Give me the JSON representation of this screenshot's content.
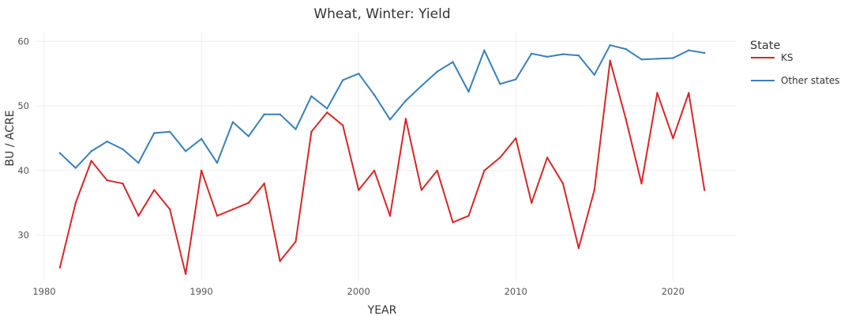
{
  "chart_data": {
    "type": "line",
    "title": "Wheat, Winter: Yield",
    "xlabel": "YEAR",
    "ylabel": "BU / ACRE",
    "xlim": [
      1979.5,
      2024.0
    ],
    "ylim": [
      23.0,
      61.5
    ],
    "x_ticks": [
      1980,
      1990,
      2000,
      2010,
      2020
    ],
    "y_ticks": [
      30,
      40,
      50,
      60
    ],
    "grid": true,
    "legend": {
      "title": "State",
      "position": "right"
    },
    "x": [
      1981,
      1982,
      1983,
      1984,
      1985,
      1986,
      1987,
      1988,
      1989,
      1990,
      1991,
      1992,
      1993,
      1994,
      1995,
      1996,
      1997,
      1998,
      1999,
      2000,
      2001,
      2002,
      2003,
      2004,
      2005,
      2006,
      2007,
      2008,
      2009,
      2010,
      2011,
      2012,
      2013,
      2014,
      2015,
      2016,
      2017,
      2018,
      2019,
      2020,
      2021,
      2022
    ],
    "series": [
      {
        "name": "KS",
        "color": "#d62728",
        "values": [
          25,
          35,
          41.5,
          38.5,
          38,
          33,
          37,
          34,
          24,
          40,
          33,
          34,
          35,
          38,
          26,
          29,
          46,
          49,
          47,
          37,
          40,
          33,
          48,
          37,
          40,
          32,
          33,
          40,
          42,
          45,
          35,
          42,
          38,
          28,
          37,
          57,
          48,
          38,
          52,
          45,
          52,
          37
        ]
      },
      {
        "name": "Other states",
        "color": "#3a7fb8",
        "values": [
          42.7,
          40.4,
          43,
          44.5,
          43.3,
          41.2,
          45.8,
          46,
          43,
          44.9,
          41.2,
          47.5,
          45.3,
          48.7,
          48.7,
          46.4,
          51.5,
          49.6,
          54,
          55,
          51.7,
          47.9,
          50.8,
          53.1,
          55.3,
          56.8,
          52.2,
          58.6,
          53.4,
          54.1,
          58.1,
          57.6,
          58,
          57.8,
          54.8,
          59.4,
          58.8,
          57.2,
          57.3,
          57.4,
          58.6,
          58.2
        ]
      }
    ]
  }
}
